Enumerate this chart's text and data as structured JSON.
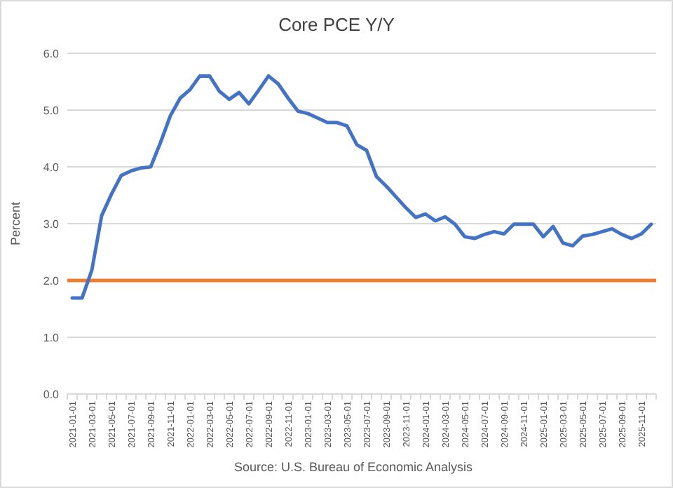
{
  "chart_data": {
    "type": "line",
    "title": "Core PCE Y/Y",
    "ylabel": "Percent",
    "annotations": [
      "Source:  U.S. Bureau of Economic Analysis"
    ],
    "categories": [
      "2021-01-01",
      null,
      "2021-03-01",
      null,
      "2021-05-01",
      null,
      "2021-07-01",
      null,
      "2021-09-01",
      null,
      "2021-11-01",
      null,
      "2022-01-01",
      null,
      "2022-03-01",
      null,
      "2022-05-01",
      null,
      "2022-07-01",
      null,
      "2022-09-01",
      null,
      "2022-11-01",
      null,
      "2023-01-01",
      null,
      "2023-03-01",
      null,
      "2023-05-01",
      null,
      "2023-07-01",
      null,
      "2023-09-01",
      null,
      "2023-11-01",
      null,
      "2024-01-01",
      null,
      "2024-03-01",
      null,
      "2024-05-01",
      null,
      "2024-07-01",
      null,
      "2024-09-01",
      null,
      "2024-11-01",
      null,
      "2025-01-01",
      null,
      "2025-03-01",
      null,
      "2025-05-01",
      null,
      "2025-07-01",
      null,
      "2025-09-01",
      null,
      "2025-11-01",
      null
    ],
    "series": [
      {
        "color": "#4472c4",
        "values": [
          1.69,
          1.69,
          2.18,
          3.14,
          3.52,
          3.85,
          3.93,
          3.98,
          4.0,
          4.43,
          4.9,
          5.21,
          5.36,
          5.6,
          5.6,
          5.33,
          5.19,
          5.31,
          5.11,
          5.35,
          5.6,
          5.46,
          5.21,
          4.98,
          4.94,
          4.86,
          4.78,
          4.78,
          4.72,
          4.39,
          4.29,
          3.83,
          3.66,
          3.47,
          3.28,
          3.11,
          3.17,
          3.05,
          3.12,
          2.99,
          2.77,
          2.74,
          2.81,
          2.86,
          2.82,
          2.99,
          2.99,
          2.99,
          2.77,
          2.95,
          2.66,
          2.61,
          2.78,
          2.81,
          2.86,
          2.91,
          2.81,
          2.74,
          2.82,
          2.99
        ]
      }
    ],
    "ylim": [
      0,
      6
    ],
    "yticks": [
      {
        "value": 0,
        "label": "0.0"
      },
      {
        "value": 1,
        "label": "1.0"
      },
      {
        "value": 2,
        "label": "2.0"
      },
      {
        "value": 3,
        "label": "3.0"
      },
      {
        "value": 4,
        "label": "4.0"
      },
      {
        "value": 5,
        "label": "5.0"
      },
      {
        "value": 6,
        "label": "6.0"
      }
    ],
    "ref_lines": [
      {
        "axis": "y",
        "value": 2,
        "color": "#ed7d31"
      }
    ],
    "grid": "y"
  }
}
